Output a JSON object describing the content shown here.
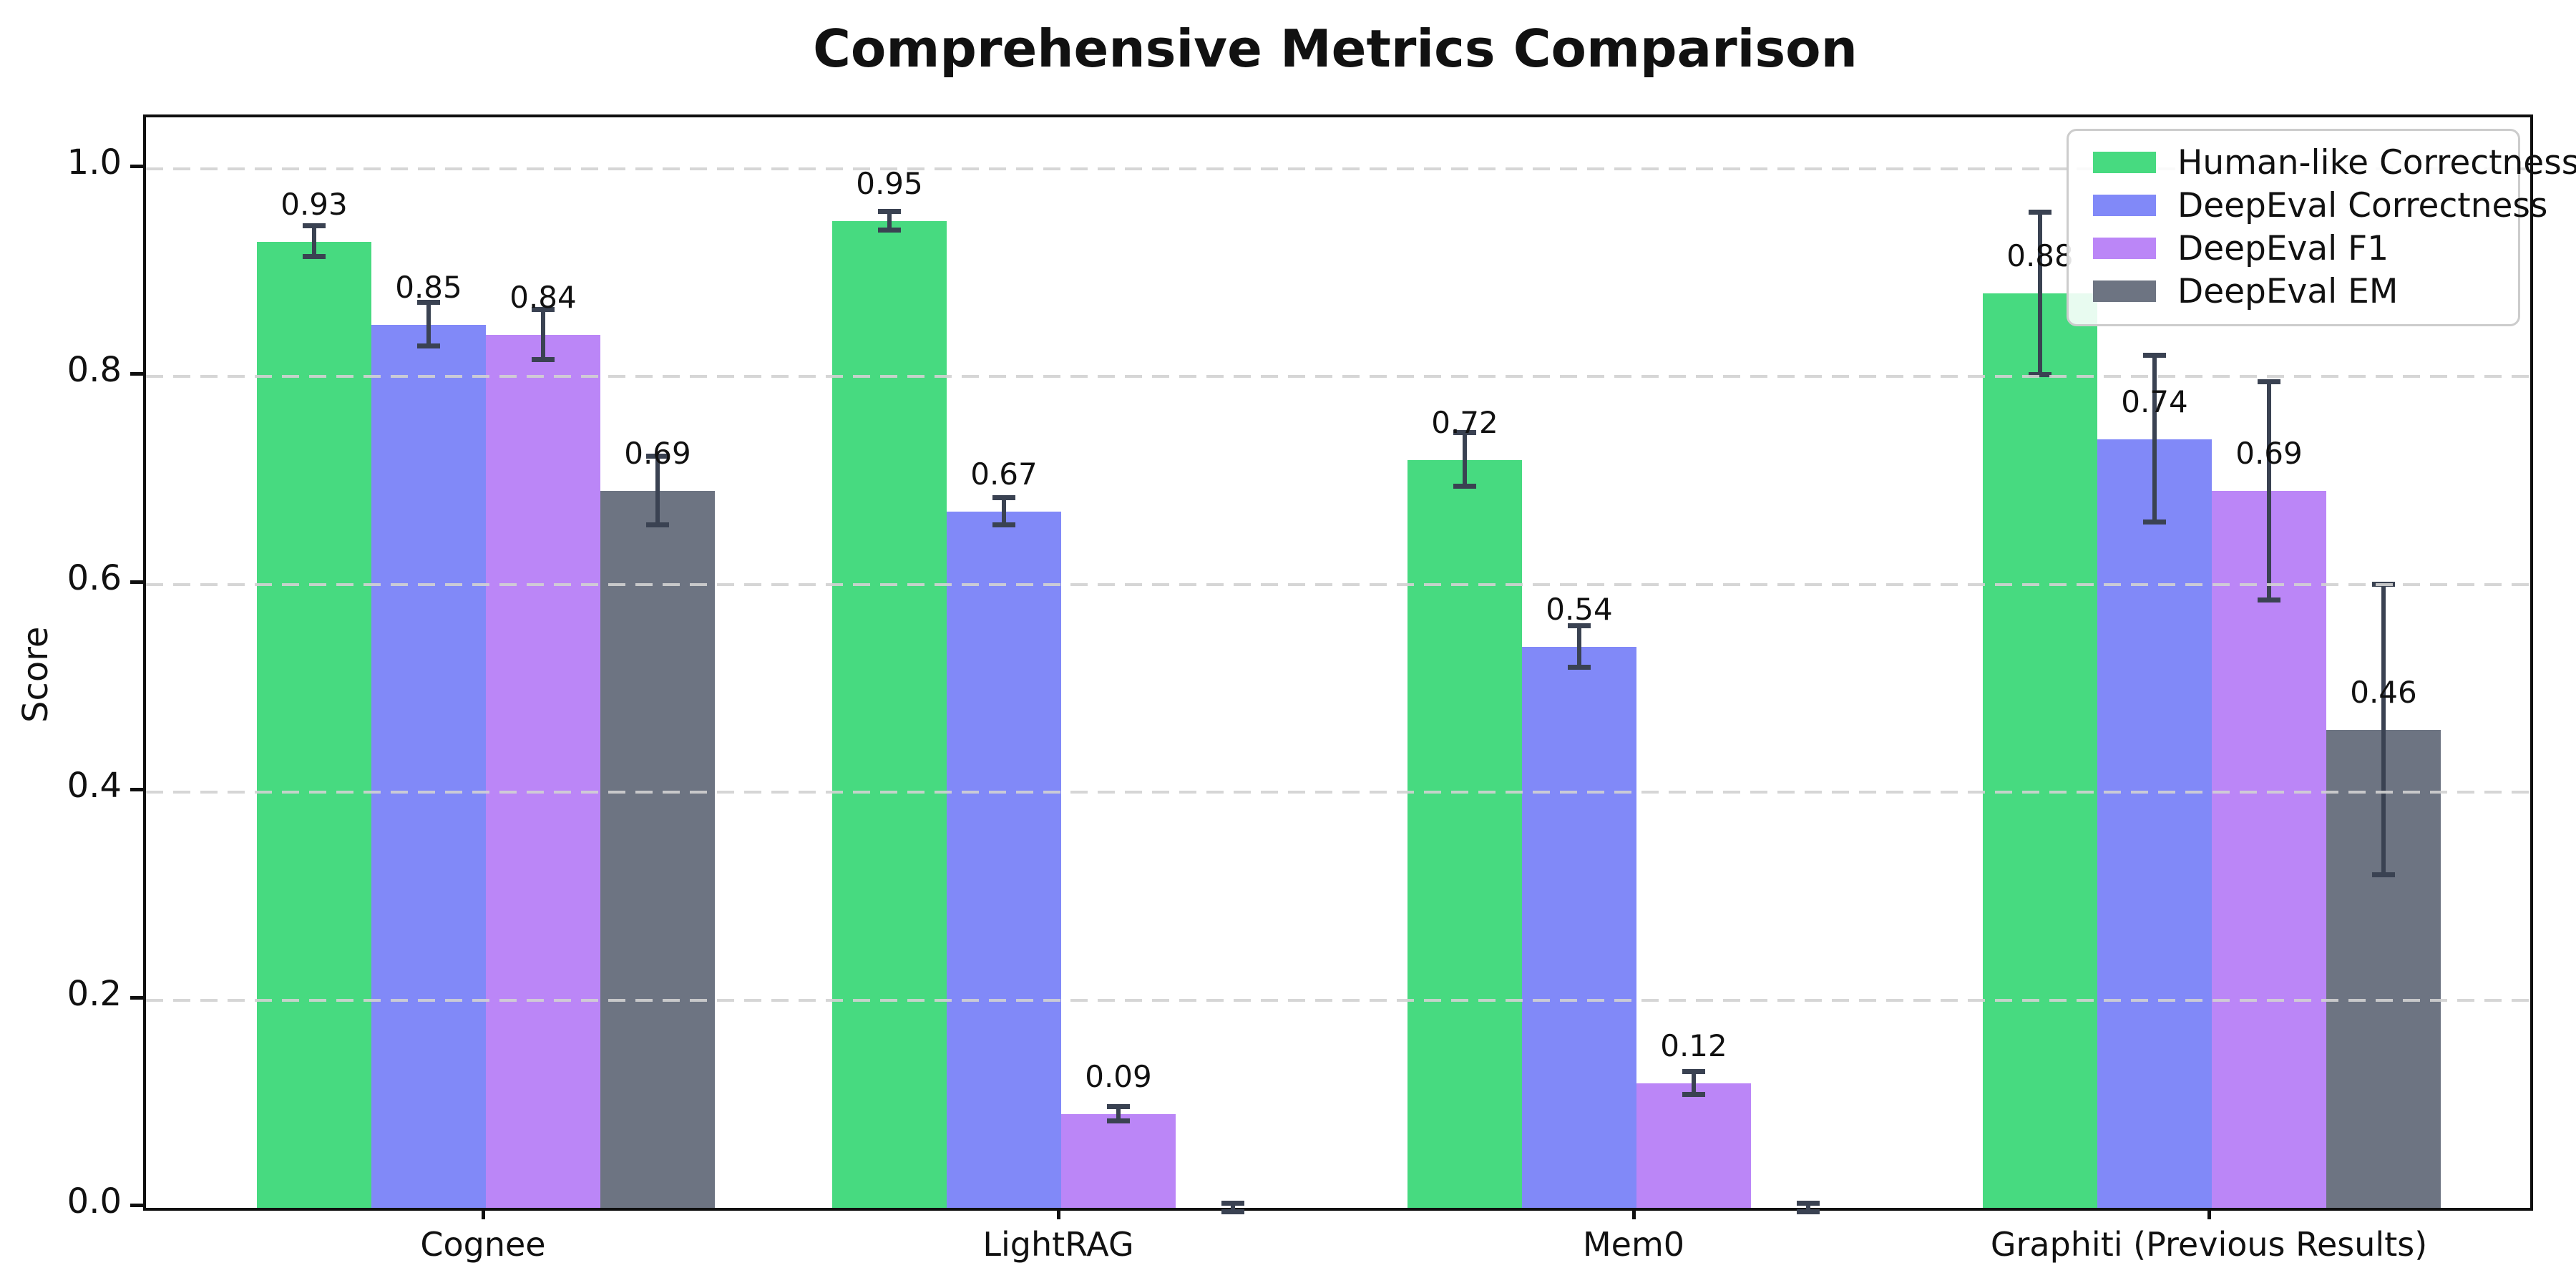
{
  "title": "Comprehensive Metrics Comparison",
  "chart_data": {
    "type": "bar",
    "title": "Comprehensive Metrics Comparison",
    "xlabel": "",
    "ylabel": "Score",
    "ylim": [
      0,
      1.05
    ],
    "yticks": [
      0.0,
      0.2,
      0.4,
      0.6,
      0.8,
      1.0
    ],
    "ytick_labels": [
      "0.0",
      "0.2",
      "0.4",
      "0.6",
      "0.8",
      "1.0"
    ],
    "grid": "horizontal dashed, drawn above bars",
    "legend_position": "upper right",
    "background_color": "#ffffff",
    "error_bar_color": "#3a4252",
    "grid_color": "#d2d2d2",
    "categories": [
      "Cognee",
      "LightRAG",
      "Mem0",
      "Graphiti (Previous Results)"
    ],
    "series": [
      {
        "name": "Human-like Correctness",
        "color": "#47da80",
        "values": [
          0.93,
          0.95,
          0.72,
          0.88
        ],
        "errors": [
          0.015,
          0.009,
          0.026,
          0.078
        ],
        "labels": [
          "0.93",
          "0.95",
          "0.72",
          "0.88"
        ]
      },
      {
        "name": "DeepEval Correctness",
        "color": "#8189f8",
        "values": [
          0.85,
          0.67,
          0.54,
          0.74
        ],
        "errors": [
          0.021,
          0.013,
          0.02,
          0.08
        ],
        "labels": [
          "0.85",
          "0.67",
          "0.54",
          "0.74"
        ]
      },
      {
        "name": "DeepEval F1",
        "color": "#bb86f7",
        "values": [
          0.84,
          0.09,
          0.12,
          0.69
        ],
        "errors": [
          0.024,
          0.007,
          0.011,
          0.105
        ],
        "labels": [
          "0.84",
          "0.09",
          "0.12",
          "0.69"
        ]
      },
      {
        "name": "DeepEval EM",
        "color": "#6d7482",
        "values": [
          0.69,
          0.0,
          0.0,
          0.46
        ],
        "errors": [
          0.033,
          0.004,
          0.004,
          0.14
        ],
        "labels": [
          "0.69",
          "",
          "",
          "0.46"
        ]
      }
    ]
  }
}
